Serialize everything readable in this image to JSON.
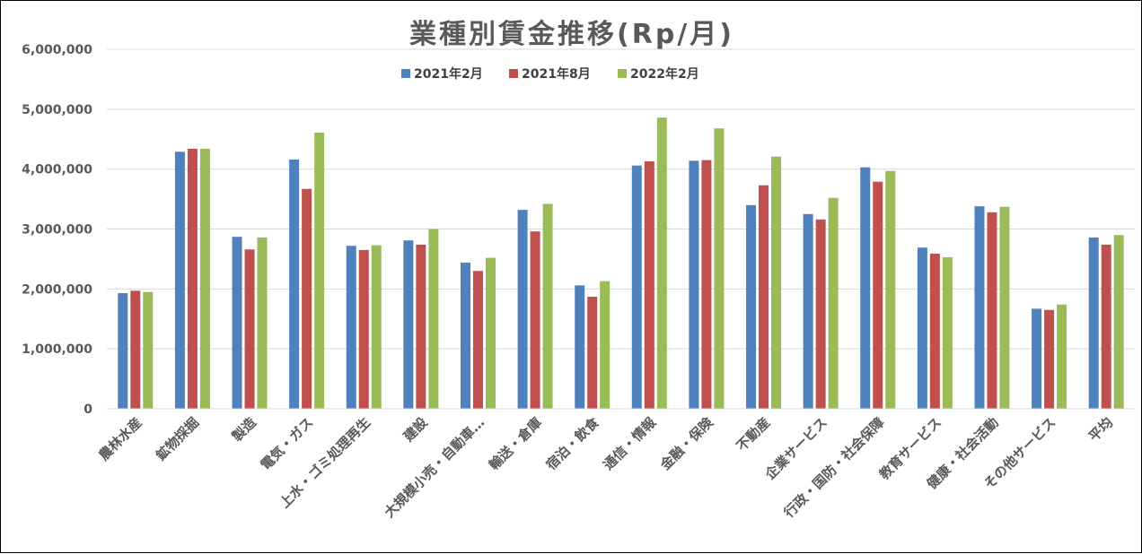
{
  "chart_data": {
    "type": "bar",
    "title": "業種別賃金推移(Rp/月)",
    "xlabel": "",
    "ylabel": "",
    "ylim": [
      0,
      6000000
    ],
    "yticks": [
      0,
      1000000,
      2000000,
      3000000,
      4000000,
      5000000,
      6000000
    ],
    "ytick_labels": [
      "0",
      "1,000,000",
      "2,000,000",
      "3,000,000",
      "4,000,000",
      "5,000,000",
      "6,000,000"
    ],
    "grid": true,
    "legend_position": "top-center",
    "categories": [
      "農林水産",
      "鉱物採掘",
      "製造",
      "電気・ガス",
      "上水・ゴミ処理再生",
      "建設",
      "大規模小売・自動車…",
      "輸送・倉庫",
      "宿泊・飲食",
      "通信・情報",
      "金融・保険",
      "不動産",
      "企業サービス",
      "行政・国防・社会保障",
      "教育サービス",
      "健康・社会活動",
      "その他サービス",
      "平均"
    ],
    "series": [
      {
        "name": "2021年2月",
        "color": "#4F81BD",
        "values": [
          1930000,
          4290000,
          2870000,
          4160000,
          2720000,
          2810000,
          2440000,
          3320000,
          2060000,
          4060000,
          4140000,
          3400000,
          3250000,
          4030000,
          2690000,
          3380000,
          1670000,
          2860000
        ]
      },
      {
        "name": "2021年8月",
        "color": "#C0504D",
        "values": [
          1970000,
          4340000,
          2660000,
          3670000,
          2650000,
          2740000,
          2300000,
          2960000,
          1870000,
          4130000,
          4150000,
          3730000,
          3160000,
          3790000,
          2590000,
          3280000,
          1650000,
          2740000
        ]
      },
      {
        "name": "2022年2月",
        "color": "#9BBB59",
        "values": [
          1950000,
          4340000,
          2860000,
          4610000,
          2730000,
          3000000,
          2520000,
          3420000,
          2130000,
          4860000,
          4680000,
          4210000,
          3520000,
          3970000,
          2530000,
          3370000,
          1740000,
          2900000
        ]
      }
    ]
  }
}
